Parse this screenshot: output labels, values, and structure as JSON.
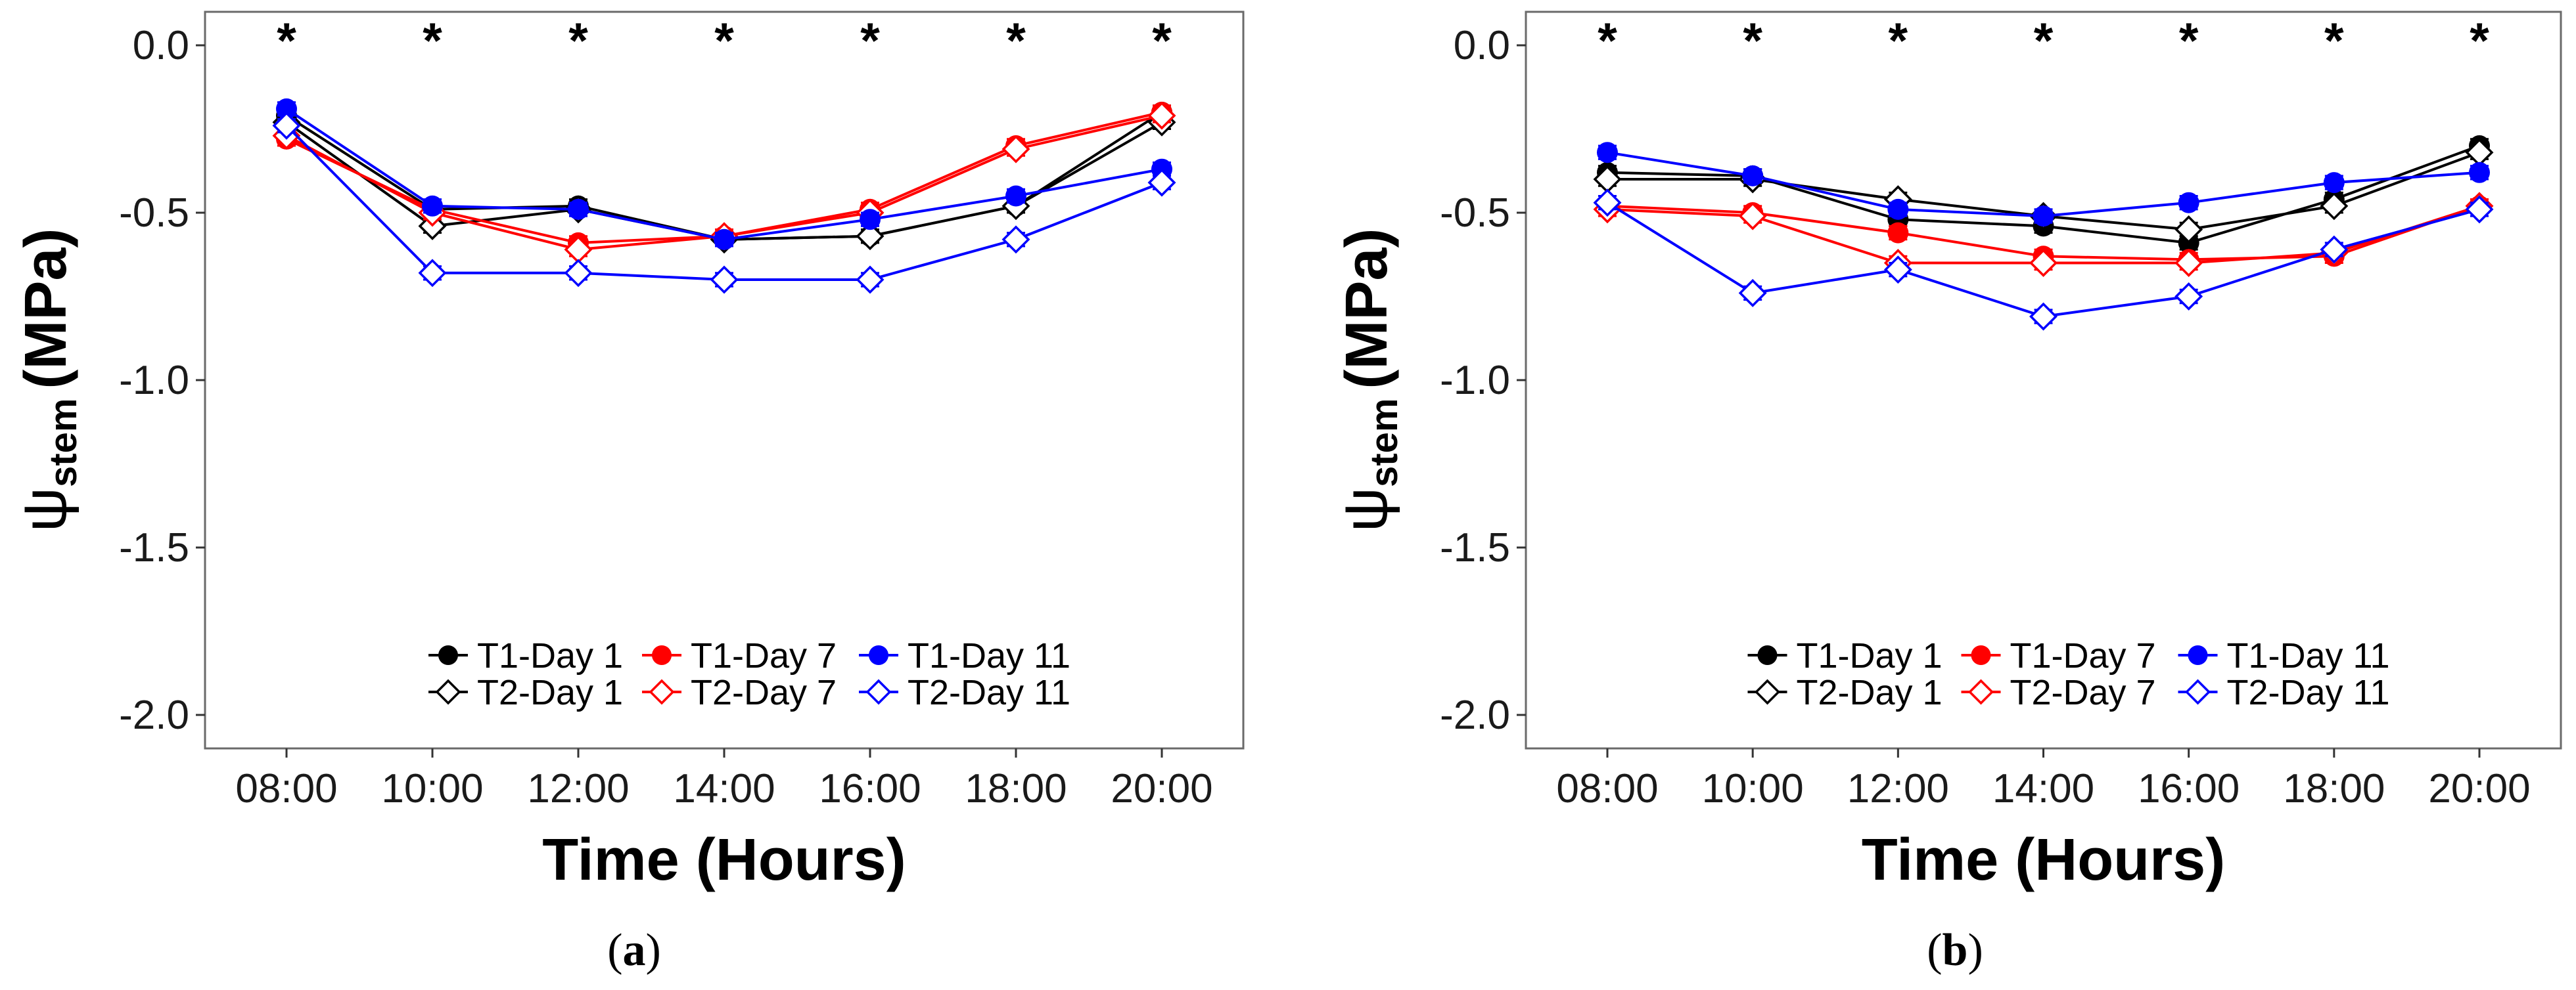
{
  "chart_data": [
    {
      "type": "line",
      "panel_label": "a",
      "xlabel": "Time (Hours)",
      "ylabel_symbol": "ψ",
      "ylabel_subscript": "stem",
      "ylabel_unit": "(MPa)",
      "categories": [
        "08:00",
        "10:00",
        "12:00",
        "14:00",
        "16:00",
        "18:00",
        "20:00"
      ],
      "ylim": [
        -2.1,
        0.1
      ],
      "yticks": [
        0.0,
        -0.5,
        -1.0,
        -1.5,
        -2.0
      ],
      "ytick_labels": [
        "0.0",
        "-0.5",
        "-1.0",
        "-1.5",
        "-2.0"
      ],
      "significance_marks": [
        "*",
        "*",
        "*",
        "*",
        "*",
        "*",
        "*"
      ],
      "legend_position": "bottom-center",
      "series": [
        {
          "name": "T1-Day 1",
          "color": "#000000",
          "marker": "filled-circle",
          "values": [
            -0.21,
            -0.49,
            -0.48,
            -0.58,
            -0.57,
            -0.48,
            -0.2
          ],
          "errors": [
            0.02,
            0.02,
            0.02,
            0.02,
            0.02,
            0.02,
            0.02
          ]
        },
        {
          "name": "T2-Day 1",
          "color": "#000000",
          "marker": "open-diamond",
          "values": [
            -0.23,
            -0.54,
            -0.49,
            -0.58,
            -0.57,
            -0.48,
            -0.23
          ],
          "errors": [
            0.02,
            0.02,
            0.02,
            0.02,
            0.02,
            0.02,
            0.02
          ]
        },
        {
          "name": "T1-Day 7",
          "color": "#ff0000",
          "marker": "filled-circle",
          "values": [
            -0.28,
            -0.49,
            -0.59,
            -0.57,
            -0.49,
            -0.3,
            -0.2
          ],
          "errors": [
            0.02,
            0.02,
            0.02,
            0.02,
            0.02,
            0.02,
            0.02
          ]
        },
        {
          "name": "T2-Day 7",
          "color": "#ff0000",
          "marker": "open-diamond",
          "values": [
            -0.27,
            -0.5,
            -0.61,
            -0.57,
            -0.5,
            -0.31,
            -0.21
          ],
          "errors": [
            0.02,
            0.02,
            0.02,
            0.02,
            0.02,
            0.02,
            0.02
          ]
        },
        {
          "name": "T1-Day 11",
          "color": "#0000ff",
          "marker": "filled-circle",
          "values": [
            -0.19,
            -0.48,
            -0.49,
            -0.58,
            -0.52,
            -0.45,
            -0.37
          ],
          "errors": [
            0.02,
            0.02,
            0.02,
            0.02,
            0.02,
            0.02,
            0.02
          ]
        },
        {
          "name": "T2-Day 11",
          "color": "#0000ff",
          "marker": "open-diamond",
          "values": [
            -0.24,
            -0.68,
            -0.68,
            -0.7,
            -0.7,
            -0.58,
            -0.41
          ],
          "errors": [
            0.02,
            0.02,
            0.02,
            0.02,
            0.02,
            0.02,
            0.02
          ]
        }
      ]
    },
    {
      "type": "line",
      "panel_label": "b",
      "xlabel": "Time (Hours)",
      "ylabel_symbol": "ψ",
      "ylabel_subscript": "stem",
      "ylabel_unit": "(MPa)",
      "categories": [
        "08:00",
        "10:00",
        "12:00",
        "14:00",
        "16:00",
        "18:00",
        "20:00"
      ],
      "ylim": [
        -2.1,
        0.1
      ],
      "yticks": [
        0.0,
        -0.5,
        -1.0,
        -1.5,
        -2.0
      ],
      "ytick_labels": [
        "0.0",
        "-0.5",
        "-1.0",
        "-1.5",
        "-2.0"
      ],
      "significance_marks": [
        "*",
        "*",
        "*",
        "*",
        "*",
        "*",
        "*"
      ],
      "legend_position": "bottom-center",
      "series": [
        {
          "name": "T1-Day 1",
          "color": "#000000",
          "marker": "filled-circle",
          "values": [
            -0.38,
            -0.39,
            -0.52,
            -0.54,
            -0.59,
            -0.46,
            -0.3
          ],
          "errors": [
            0.02,
            0.02,
            0.02,
            0.02,
            0.02,
            0.02,
            0.02
          ]
        },
        {
          "name": "T2-Day 1",
          "color": "#000000",
          "marker": "open-diamond",
          "values": [
            -0.4,
            -0.4,
            -0.46,
            -0.51,
            -0.55,
            -0.48,
            -0.32
          ],
          "errors": [
            0.02,
            0.02,
            0.02,
            0.02,
            0.02,
            0.02,
            0.02
          ]
        },
        {
          "name": "T1-Day 7",
          "color": "#ff0000",
          "marker": "filled-circle",
          "values": [
            -0.48,
            -0.5,
            -0.56,
            -0.63,
            -0.64,
            -0.63,
            -0.48
          ],
          "errors": [
            0.02,
            0.02,
            0.02,
            0.02,
            0.02,
            0.02,
            0.02
          ]
        },
        {
          "name": "T2-Day 7",
          "color": "#ff0000",
          "marker": "open-diamond",
          "values": [
            -0.49,
            -0.51,
            -0.65,
            -0.65,
            -0.65,
            -0.62,
            -0.48
          ],
          "errors": [
            0.02,
            0.02,
            0.02,
            0.02,
            0.02,
            0.02,
            0.02
          ]
        },
        {
          "name": "T1-Day 11",
          "color": "#0000ff",
          "marker": "filled-circle",
          "values": [
            -0.32,
            -0.39,
            -0.49,
            -0.51,
            -0.47,
            -0.41,
            -0.38
          ],
          "errors": [
            0.02,
            0.02,
            0.02,
            0.02,
            0.02,
            0.02,
            0.02
          ]
        },
        {
          "name": "T2-Day 11",
          "color": "#0000ff",
          "marker": "open-diamond",
          "values": [
            -0.47,
            -0.74,
            -0.67,
            -0.81,
            -0.75,
            -0.61,
            -0.49
          ],
          "errors": [
            0.02,
            0.02,
            0.02,
            0.02,
            0.02,
            0.02,
            0.02
          ]
        }
      ]
    }
  ]
}
